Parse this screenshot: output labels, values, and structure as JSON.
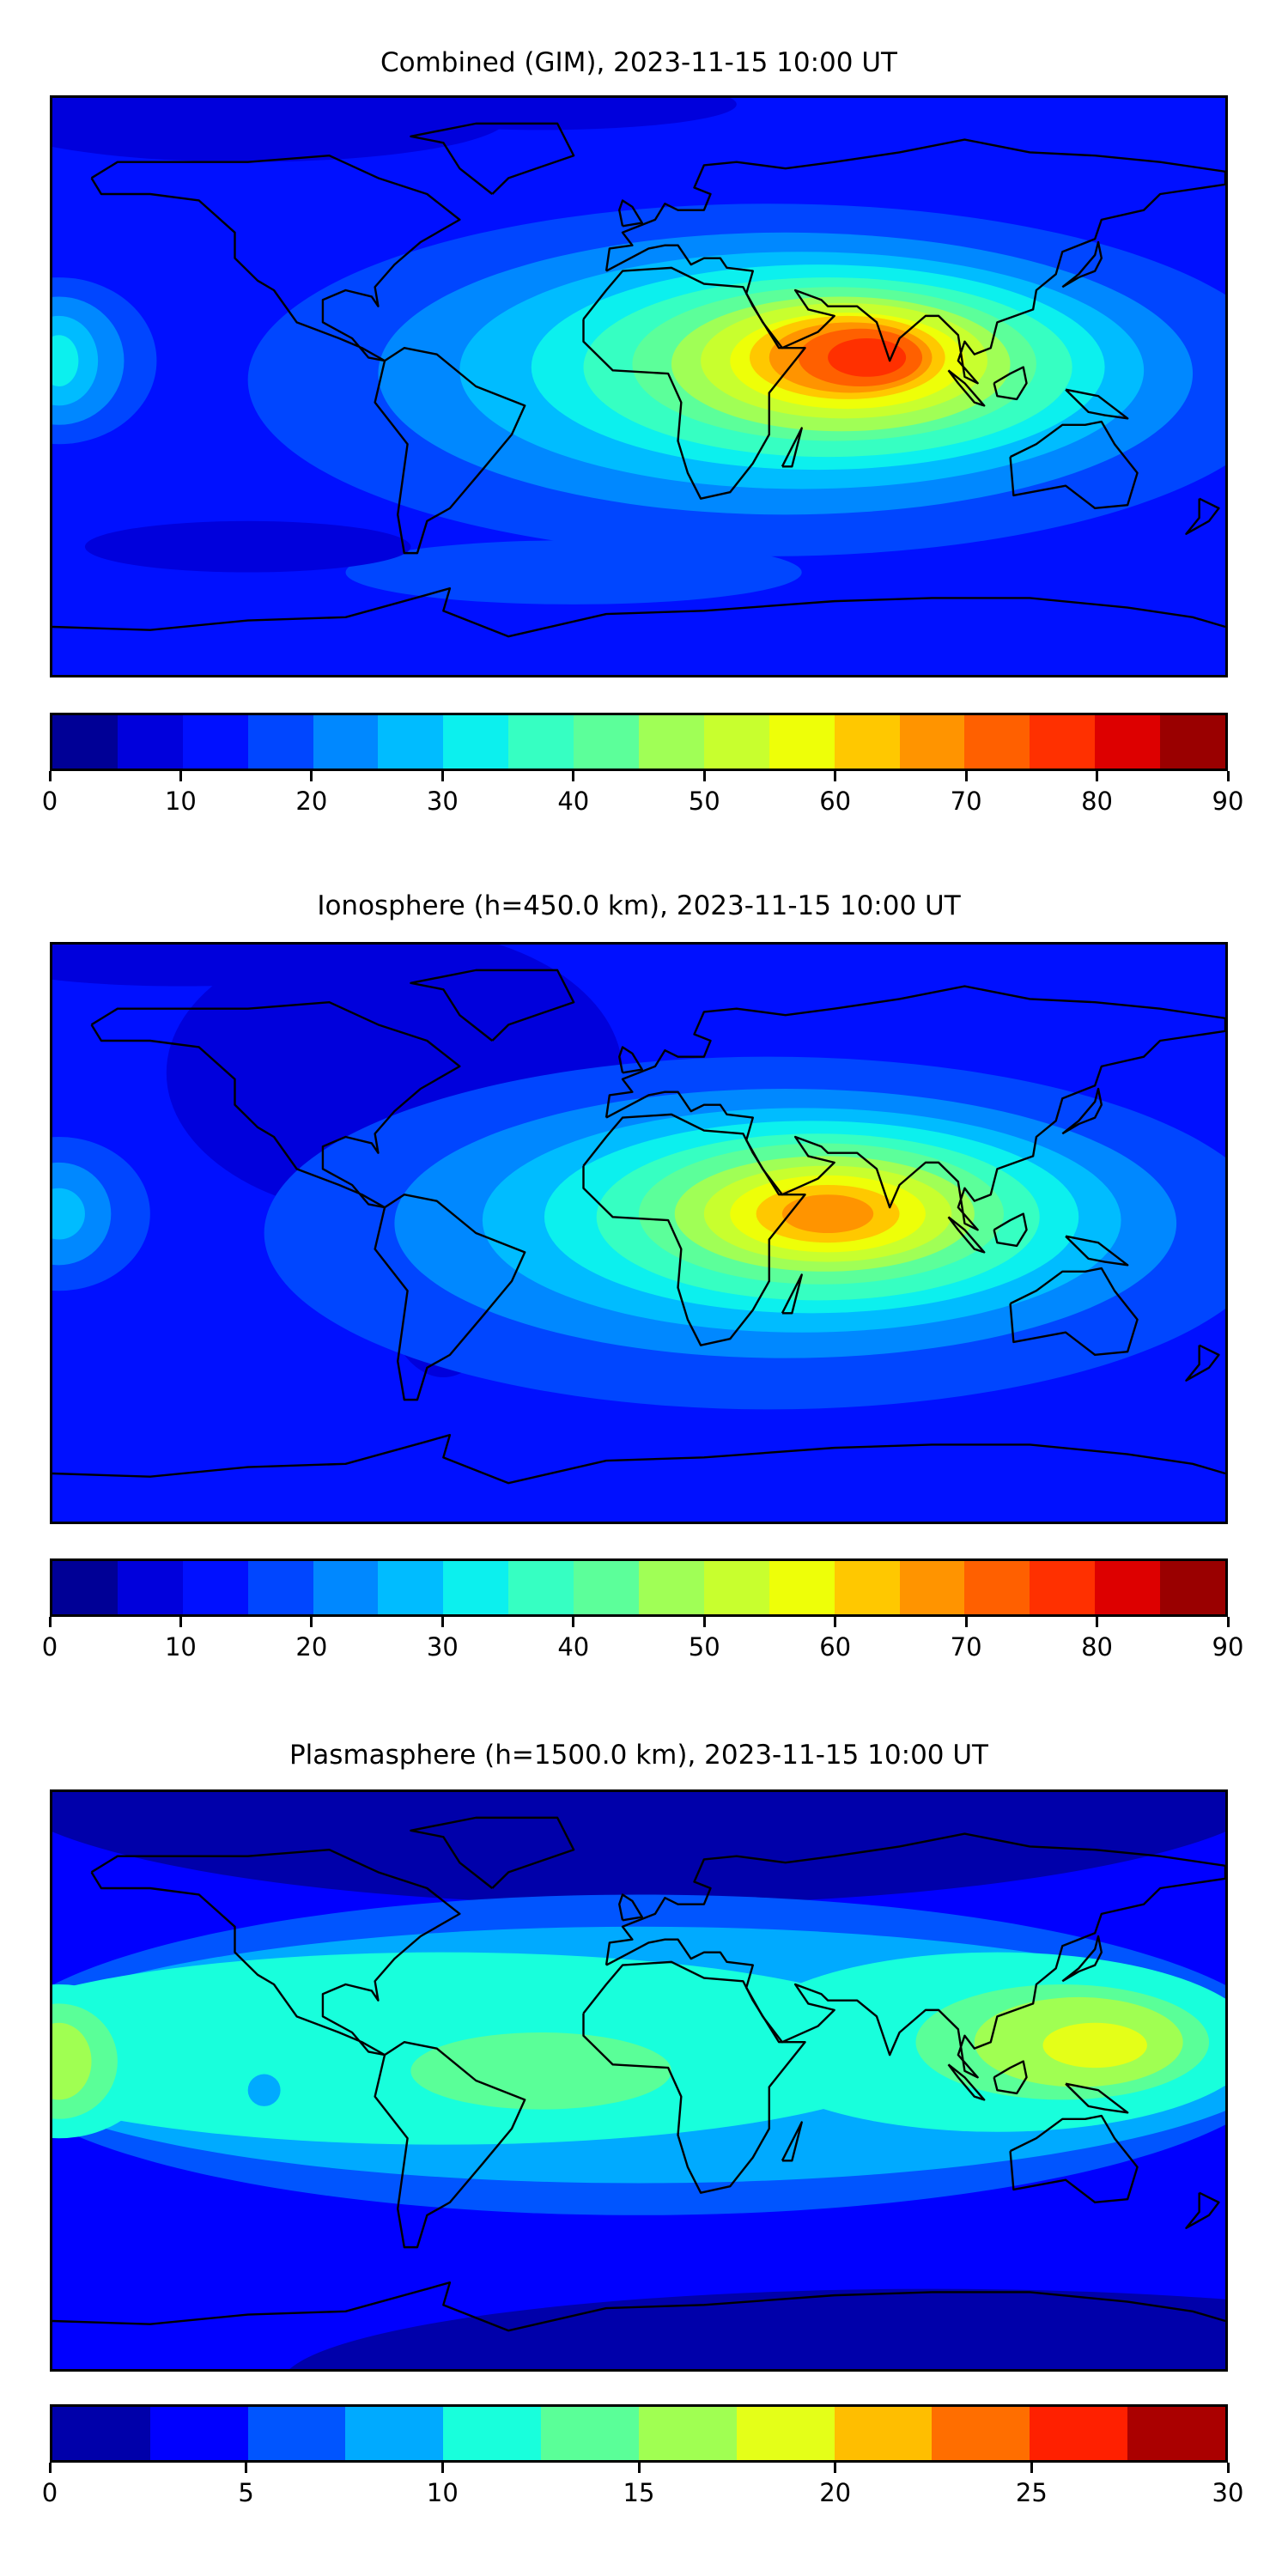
{
  "panels": [
    {
      "title": "Combined (GIM), 2023-11-15 10:00 UT",
      "colorbar": {
        "min": 0,
        "max": 90,
        "step": 5,
        "ticks": [
          "0",
          "10",
          "20",
          "30",
          "40",
          "50",
          "60",
          "70",
          "80",
          "90"
        ],
        "colors": [
          "#000096",
          "#0000dc",
          "#0010ff",
          "#0046ff",
          "#0088ff",
          "#00bcff",
          "#0cf0ee",
          "#36ffc2",
          "#5cff9a",
          "#a0ff56",
          "#c8ff2e",
          "#eeff08",
          "#ffc800",
          "#ff9400",
          "#ff6000",
          "#ff3000",
          "#dd0000",
          "#9a0000"
        ]
      }
    },
    {
      "title": "Ionosphere  (h=450.0 km), 2023-11-15 10:00 UT",
      "colorbar": {
        "min": 0,
        "max": 90,
        "step": 5,
        "ticks": [
          "0",
          "10",
          "20",
          "30",
          "40",
          "50",
          "60",
          "70",
          "80",
          "90"
        ],
        "colors": [
          "#000096",
          "#0000dc",
          "#0010ff",
          "#0046ff",
          "#0088ff",
          "#00bcff",
          "#0cf0ee",
          "#36ffc2",
          "#5cff9a",
          "#a0ff56",
          "#c8ff2e",
          "#eeff08",
          "#ffc800",
          "#ff9400",
          "#ff6000",
          "#ff3000",
          "#dd0000",
          "#9a0000"
        ]
      }
    },
    {
      "title": "Plasmasphere (h=1500.0 km), 2023-11-15 10:00 UT",
      "colorbar": {
        "min": 0,
        "max": 30,
        "step": 2.5,
        "ticks": [
          "0",
          "5",
          "10",
          "15",
          "20",
          "25",
          "30"
        ],
        "colors": [
          "#0000aa",
          "#0000ff",
          "#0055ff",
          "#00aaff",
          "#18ffdc",
          "#5aff98",
          "#a0ff52",
          "#e4ff18",
          "#ffbe00",
          "#ff6e00",
          "#ff2000",
          "#aa0000"
        ]
      }
    }
  ]
}
